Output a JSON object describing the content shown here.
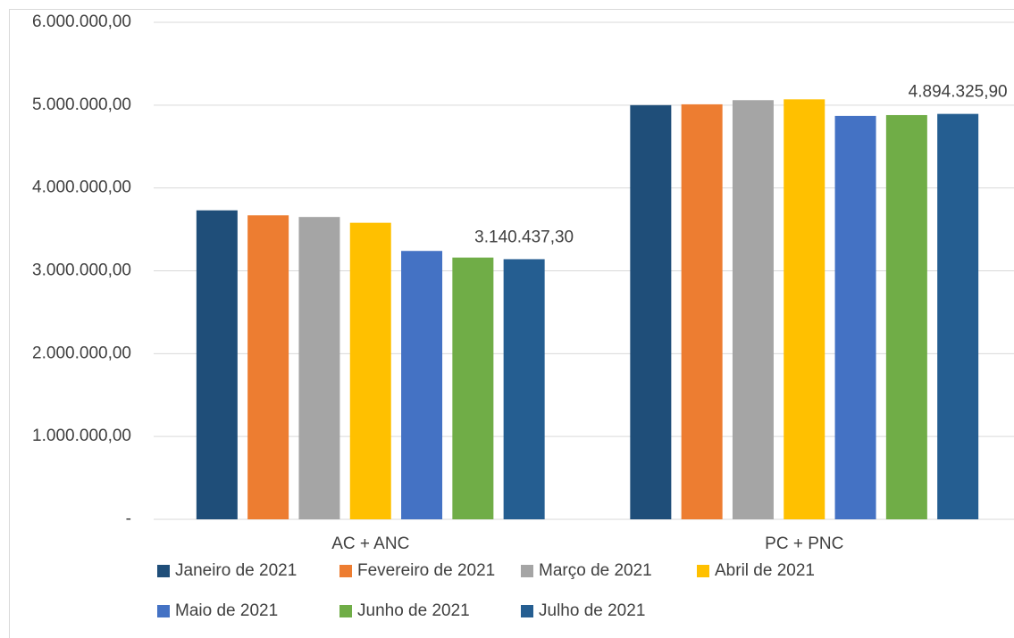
{
  "chart_data": {
    "type": "bar",
    "categories": [
      "AC + ANC",
      "PC + PNC"
    ],
    "series": [
      {
        "name": "Janeiro de 2021",
        "color": "#1f4e79",
        "values": [
          3730000,
          5000000
        ]
      },
      {
        "name": "Fevereiro de 2021",
        "color": "#ed7d31",
        "values": [
          3670000,
          5010000
        ]
      },
      {
        "name": "Março de 2021",
        "color": "#a5a5a5",
        "values": [
          3650000,
          5060000
        ]
      },
      {
        "name": "Abril de 2021",
        "color": "#ffc000",
        "values": [
          3580000,
          5070000
        ]
      },
      {
        "name": "Maio de 2021",
        "color": "#4472c4",
        "values": [
          3240000,
          4870000
        ]
      },
      {
        "name": "Junho de 2021",
        "color": "#70ad47",
        "values": [
          3160000,
          4880000
        ]
      },
      {
        "name": "Julho de 2021",
        "color": "#255e91",
        "values": [
          3140437.3,
          4894325.9
        ],
        "value_labels": [
          "3.140.437,30",
          "4.894.325,90"
        ]
      }
    ],
    "ylim": [
      0,
      6000000
    ],
    "yticks": [
      {
        "value": 0,
        "label": "-"
      },
      {
        "value": 1000000,
        "label": "1.000.000,00"
      },
      {
        "value": 2000000,
        "label": "2.000.000,00"
      },
      {
        "value": 3000000,
        "label": "3.000.000,00"
      },
      {
        "value": 4000000,
        "label": "4.000.000,00"
      },
      {
        "value": 5000000,
        "label": "5.000.000,00"
      },
      {
        "value": 6000000,
        "label": "6.000.000,00"
      }
    ],
    "grid": true,
    "legend": "bottom"
  }
}
